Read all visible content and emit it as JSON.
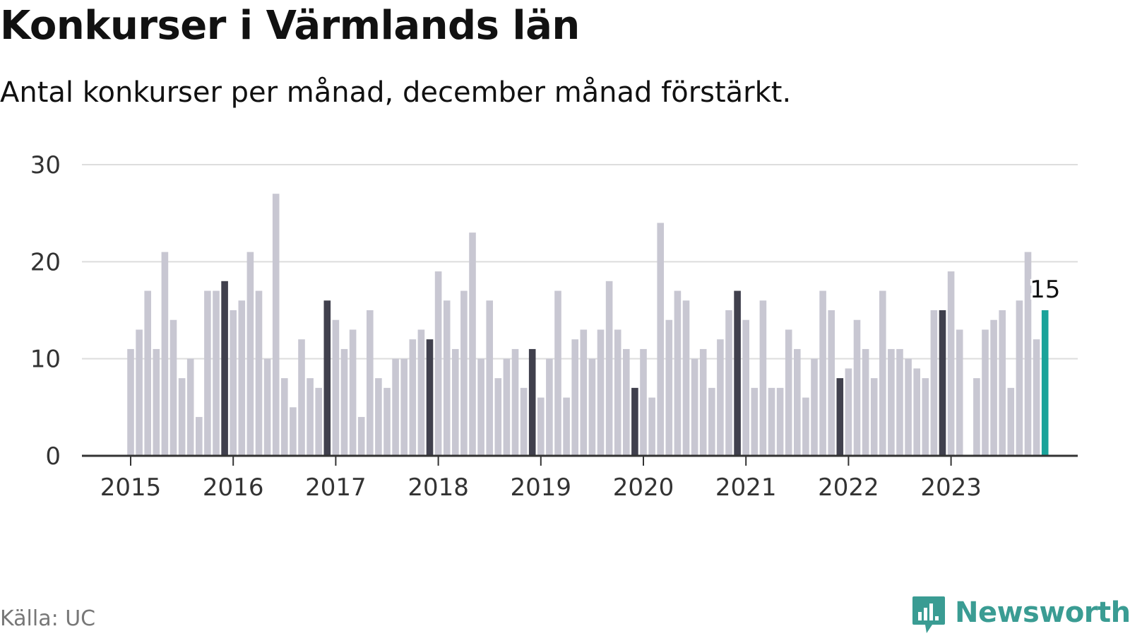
{
  "header": {
    "title": "Konkurser i Värmlands län",
    "subtitle": "Antal konkurser per månad, december månad förstärkt."
  },
  "footer": {
    "source": "Källa: UC",
    "brand": "Newsworthy"
  },
  "colors": {
    "bar": "#c8c7d2",
    "december": "#40404d",
    "highlight": "#1aa39a",
    "grid": "#dddddd",
    "axis": "#333333",
    "brand": "#3a9c93"
  },
  "chart_data": {
    "type": "bar",
    "title": "Konkurser i Värmlands län",
    "subtitle": "Antal konkurser per månad, december månad förstärkt.",
    "xlabel": "",
    "ylabel": "",
    "ylim": [
      0,
      30
    ],
    "yticks": [
      0,
      10,
      20,
      30
    ],
    "xticks": [
      "2015",
      "2016",
      "2017",
      "2018",
      "2019",
      "2020",
      "2021",
      "2022",
      "2023"
    ],
    "grid": true,
    "period": "monthly, 2015-01 to 2023-12",
    "categories": [
      "2015-01",
      "2015-02",
      "2015-03",
      "2015-04",
      "2015-05",
      "2015-06",
      "2015-07",
      "2015-08",
      "2015-09",
      "2015-10",
      "2015-11",
      "2015-12",
      "2016-01",
      "2016-02",
      "2016-03",
      "2016-04",
      "2016-05",
      "2016-06",
      "2016-07",
      "2016-08",
      "2016-09",
      "2016-10",
      "2016-11",
      "2016-12",
      "2017-01",
      "2017-02",
      "2017-03",
      "2017-04",
      "2017-05",
      "2017-06",
      "2017-07",
      "2017-08",
      "2017-09",
      "2017-10",
      "2017-11",
      "2017-12",
      "2018-01",
      "2018-02",
      "2018-03",
      "2018-04",
      "2018-05",
      "2018-06",
      "2018-07",
      "2018-08",
      "2018-09",
      "2018-10",
      "2018-11",
      "2018-12",
      "2019-01",
      "2019-02",
      "2019-03",
      "2019-04",
      "2019-05",
      "2019-06",
      "2019-07",
      "2019-08",
      "2019-09",
      "2019-10",
      "2019-11",
      "2019-12",
      "2020-01",
      "2020-02",
      "2020-03",
      "2020-04",
      "2020-05",
      "2020-06",
      "2020-07",
      "2020-08",
      "2020-09",
      "2020-10",
      "2020-11",
      "2020-12",
      "2021-01",
      "2021-02",
      "2021-03",
      "2021-04",
      "2021-05",
      "2021-06",
      "2021-07",
      "2021-08",
      "2021-09",
      "2021-10",
      "2021-11",
      "2021-12",
      "2022-01",
      "2022-02",
      "2022-03",
      "2022-04",
      "2022-05",
      "2022-06",
      "2022-07",
      "2022-08",
      "2022-09",
      "2022-10",
      "2022-11",
      "2022-12",
      "2023-01",
      "2023-02",
      "2023-03",
      "2023-04",
      "2023-05",
      "2023-06",
      "2023-07",
      "2023-08",
      "2023-09",
      "2023-10",
      "2023-11",
      "2023-12"
    ],
    "values": [
      11,
      13,
      17,
      11,
      21,
      14,
      8,
      10,
      4,
      17,
      17,
      18,
      15,
      16,
      21,
      17,
      10,
      27,
      8,
      5,
      12,
      8,
      7,
      16,
      14,
      11,
      13,
      4,
      15,
      8,
      7,
      10,
      10,
      12,
      13,
      12,
      19,
      16,
      11,
      17,
      23,
      10,
      16,
      8,
      10,
      11,
      7,
      11,
      6,
      10,
      17,
      6,
      12,
      13,
      10,
      13,
      18,
      13,
      11,
      7,
      11,
      6,
      24,
      14,
      17,
      16,
      10,
      11,
      7,
      12,
      15,
      17,
      14,
      7,
      16,
      7,
      7,
      13,
      11,
      6,
      10,
      17,
      15,
      8,
      9,
      14,
      11,
      8,
      17,
      11,
      11,
      10,
      9,
      8,
      15,
      15,
      19,
      13,
      0,
      8,
      13,
      14,
      15,
      7,
      16,
      21,
      12,
      15
    ],
    "highlight_months": [
      "2015-12",
      "2016-12",
      "2017-12",
      "2018-12",
      "2019-12",
      "2020-12",
      "2021-12",
      "2022-12"
    ],
    "latest": {
      "month": "2023-12",
      "value": 15,
      "label": "15"
    }
  }
}
